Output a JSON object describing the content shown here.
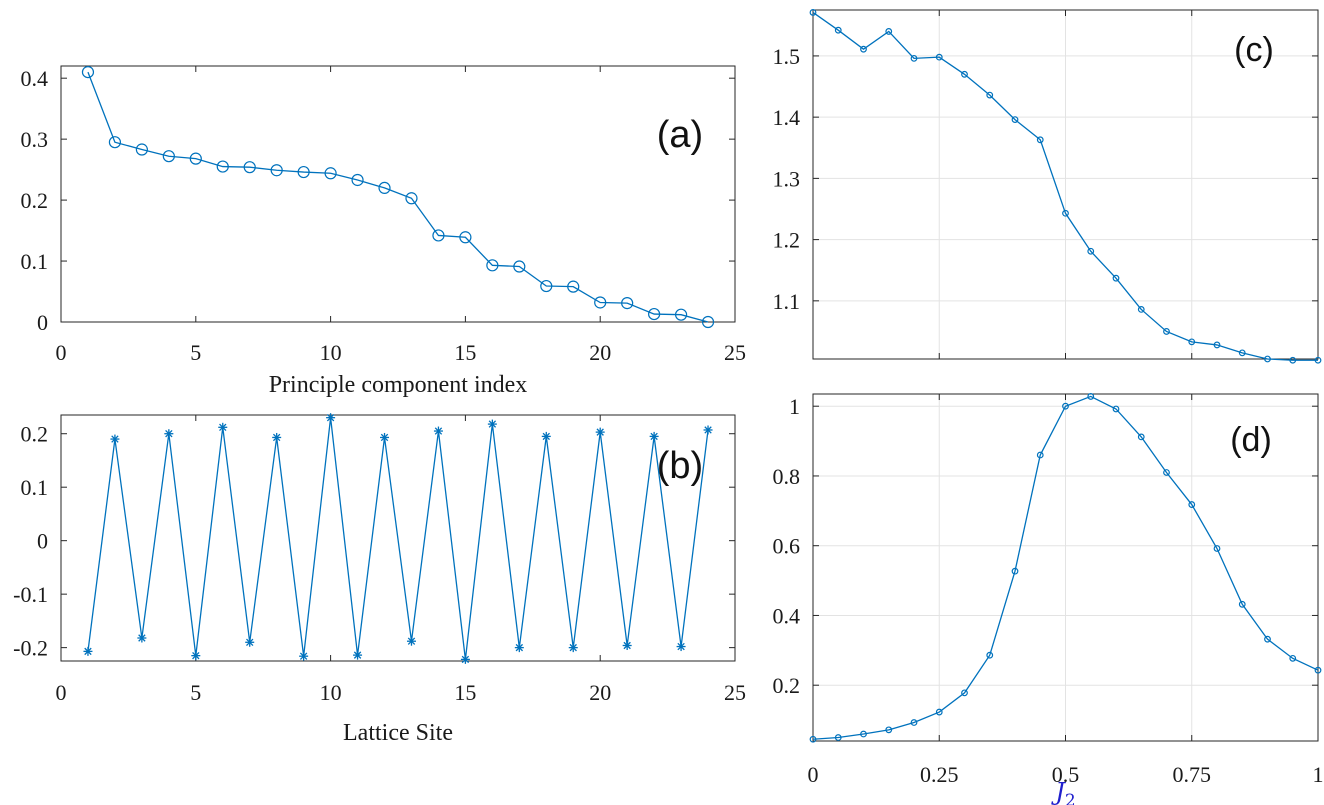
{
  "colors": {
    "series": "#0072BD",
    "axis": "#262626",
    "grid": "#e3e3e3",
    "j2_label": "#1f1fcc"
  },
  "chart_data": [
    {
      "id": "a",
      "type": "line",
      "panel_label": "(a)",
      "marker": "circle",
      "xlabel": "Principle component index",
      "ylabel": "",
      "xlim": [
        0,
        25
      ],
      "ylim": [
        0,
        0.42
      ],
      "grid": false,
      "xticks": [
        0,
        5,
        10,
        15,
        20,
        25
      ],
      "xtick_labels": [
        "0",
        "5",
        "10",
        "15",
        "20",
        "25"
      ],
      "yticks": [
        0,
        0.1,
        0.2,
        0.3,
        0.4
      ],
      "ytick_labels": [
        "0",
        "0.1",
        "0.2",
        "0.3",
        "0.4"
      ],
      "x": [
        1,
        2,
        3,
        4,
        5,
        6,
        7,
        8,
        9,
        10,
        11,
        12,
        13,
        14,
        15,
        16,
        17,
        18,
        19,
        20,
        21,
        22,
        23,
        24
      ],
      "y": [
        0.41,
        0.295,
        0.283,
        0.272,
        0.268,
        0.255,
        0.254,
        0.249,
        0.246,
        0.244,
        0.233,
        0.22,
        0.203,
        0.142,
        0.139,
        0.093,
        0.091,
        0.059,
        0.058,
        0.032,
        0.031,
        0.013,
        0.012,
        0.0
      ]
    },
    {
      "id": "b",
      "type": "line",
      "panel_label": "(b)",
      "marker": "star",
      "xlabel": "Lattice Site",
      "ylabel": "",
      "xlim": [
        0,
        25
      ],
      "ylim": [
        -0.225,
        0.235
      ],
      "grid": false,
      "xticks": [
        0,
        5,
        10,
        15,
        20,
        25
      ],
      "xtick_labels": [
        "0",
        "5",
        "10",
        "15",
        "20",
        "25"
      ],
      "yticks": [
        -0.2,
        -0.1,
        0,
        0.1,
        0.2
      ],
      "ytick_labels": [
        "-0.2",
        "-0.1",
        "0",
        "0.1",
        "0.2"
      ],
      "x": [
        1,
        2,
        3,
        4,
        5,
        6,
        7,
        8,
        9,
        10,
        11,
        12,
        13,
        14,
        15,
        16,
        17,
        18,
        19,
        20,
        21,
        22,
        23,
        24
      ],
      "y": [
        -0.207,
        0.19,
        -0.182,
        0.2,
        -0.215,
        0.212,
        -0.19,
        0.193,
        -0.216,
        0.23,
        -0.214,
        0.193,
        -0.188,
        0.205,
        -0.222,
        0.218,
        -0.2,
        0.195,
        -0.2,
        0.203,
        -0.196,
        0.195,
        -0.198,
        0.207
      ]
    },
    {
      "id": "c",
      "type": "line",
      "panel_label": "(c)",
      "marker": "small-circle",
      "xlabel": "",
      "ylabel": "",
      "xlim": [
        0,
        1
      ],
      "ylim": [
        1.005,
        1.575
      ],
      "grid": true,
      "xticks": [
        0,
        0.25,
        0.5,
        0.75,
        1
      ],
      "xtick_labels": [],
      "yticks": [
        1.1,
        1.2,
        1.3,
        1.4,
        1.5
      ],
      "ytick_labels": [
        "1.1",
        "1.2",
        "1.3",
        "1.4",
        "1.5"
      ],
      "x": [
        0,
        0.05,
        0.1,
        0.15,
        0.2,
        0.25,
        0.3,
        0.35,
        0.4,
        0.45,
        0.5,
        0.55,
        0.6,
        0.65,
        0.7,
        0.75,
        0.8,
        0.85,
        0.9,
        0.95,
        1.0
      ],
      "y": [
        1.571,
        1.542,
        1.511,
        1.54,
        1.496,
        1.498,
        1.47,
        1.436,
        1.396,
        1.363,
        1.243,
        1.181,
        1.137,
        1.086,
        1.05,
        1.033,
        1.028,
        1.015,
        1.005,
        1.003,
        1.003
      ]
    },
    {
      "id": "d",
      "type": "line",
      "panel_label": "(d)",
      "marker": "small-circle",
      "xlabel": "J",
      "xlabel_sub": "2",
      "ylabel": "",
      "xlim": [
        0,
        1
      ],
      "ylim": [
        0.04,
        1.035
      ],
      "grid": true,
      "xticks": [
        0,
        0.25,
        0.5,
        0.75,
        1
      ],
      "xtick_labels": [
        "0",
        "0.25",
        "0.5",
        "0.75",
        "1"
      ],
      "yticks": [
        0.2,
        0.4,
        0.6,
        0.8,
        1
      ],
      "ytick_labels": [
        "0.2",
        "0.4",
        "0.6",
        "0.8",
        "1"
      ],
      "x": [
        0,
        0.05,
        0.1,
        0.15,
        0.2,
        0.25,
        0.3,
        0.35,
        0.4,
        0.45,
        0.5,
        0.55,
        0.6,
        0.65,
        0.7,
        0.75,
        0.8,
        0.85,
        0.9,
        0.95,
        1.0
      ],
      "y": [
        0.045,
        0.05,
        0.06,
        0.072,
        0.093,
        0.123,
        0.178,
        0.286,
        0.527,
        0.86,
        1.0,
        1.028,
        0.992,
        0.912,
        0.81,
        0.718,
        0.592,
        0.432,
        0.332,
        0.277,
        0.243
      ]
    }
  ]
}
